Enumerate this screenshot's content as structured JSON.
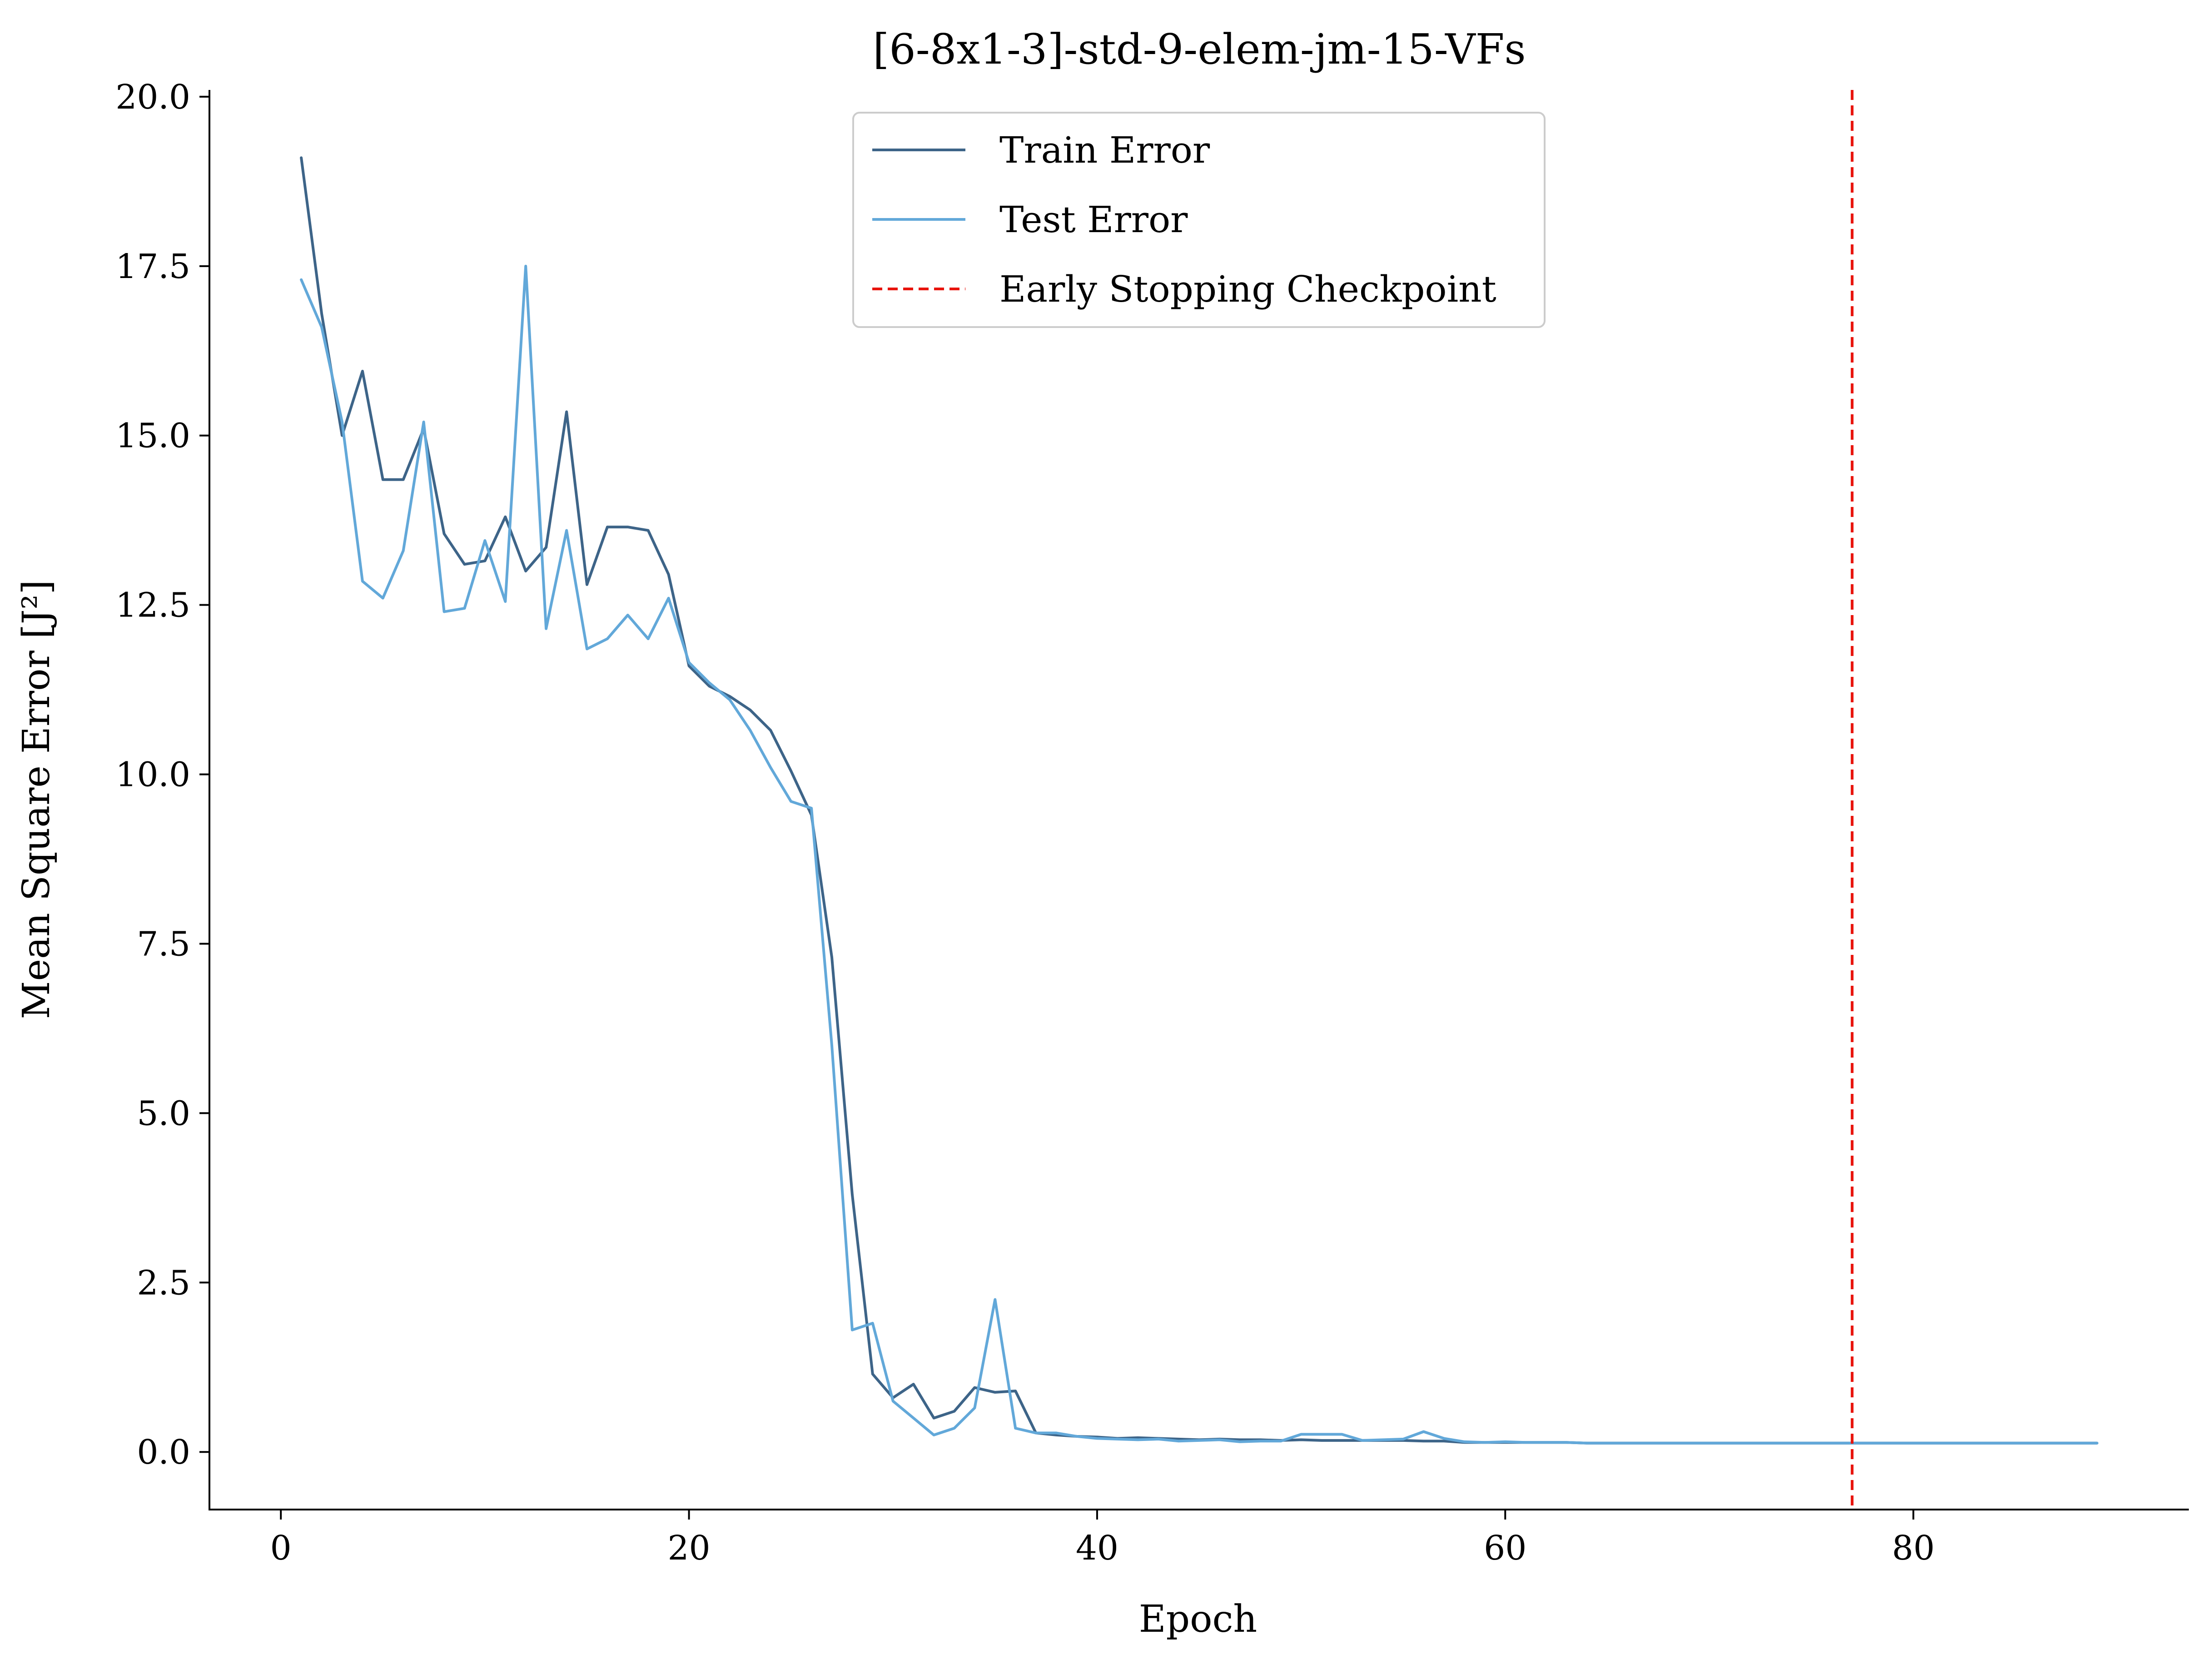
{
  "chart_data": {
    "type": "line",
    "title": "[6-8x1-3]-std-9-elem-jm-15-VFs",
    "xlabel": "Epoch",
    "ylabel": "Mean Square Error [J²]",
    "xlim": [
      -3.5,
      93.5
    ],
    "ylim": [
      -0.85,
      20.1
    ],
    "xticks": [
      0,
      20,
      40,
      60,
      80
    ],
    "xtick_labels": [
      "0",
      "20",
      "40",
      "60",
      "80"
    ],
    "yticks": [
      0.0,
      2.5,
      5.0,
      7.5,
      10.0,
      12.5,
      15.0,
      17.5,
      20.0
    ],
    "ytick_labels": [
      "0.0",
      "2.5",
      "5.0",
      "7.5",
      "10.0",
      "12.5",
      "15.0",
      "17.5",
      "20.0"
    ],
    "grid": false,
    "legend_position": "top-center",
    "series": [
      {
        "name": "Train Error",
        "color": "#3d6488",
        "style": "solid",
        "x": [
          1,
          2,
          3,
          4,
          5,
          6,
          7,
          8,
          9,
          10,
          11,
          12,
          13,
          14,
          15,
          16,
          17,
          18,
          19,
          20,
          21,
          22,
          23,
          24,
          25,
          26,
          27,
          28,
          29,
          30,
          31,
          32,
          33,
          34,
          35,
          36,
          37,
          38,
          39,
          40,
          41,
          42,
          43,
          44,
          45,
          46,
          47,
          48,
          49,
          50,
          51,
          52,
          53,
          54,
          55,
          56,
          57,
          58,
          59,
          60,
          61,
          62,
          63,
          64,
          65,
          66,
          67,
          68,
          69,
          70,
          71,
          72,
          73,
          74,
          75,
          76,
          77,
          78,
          79,
          80,
          81,
          82,
          83,
          84,
          85,
          86,
          87,
          88,
          89
        ],
        "y": [
          19.1,
          16.8,
          15.0,
          15.95,
          14.35,
          14.35,
          15.1,
          13.55,
          13.1,
          13.15,
          13.8,
          13.0,
          13.35,
          15.35,
          12.8,
          13.65,
          13.65,
          13.6,
          12.95,
          11.6,
          11.3,
          11.15,
          10.95,
          10.65,
          10.05,
          9.4,
          7.3,
          3.8,
          1.15,
          0.8,
          1.0,
          0.5,
          0.6,
          0.95,
          0.88,
          0.9,
          0.28,
          0.25,
          0.23,
          0.22,
          0.2,
          0.21,
          0.2,
          0.19,
          0.18,
          0.19,
          0.18,
          0.18,
          0.17,
          0.18,
          0.17,
          0.17,
          0.17,
          0.17,
          0.17,
          0.16,
          0.16,
          0.14,
          0.14,
          0.14,
          0.14,
          0.14,
          0.14,
          0.13,
          0.13,
          0.13,
          0.13,
          0.13,
          0.13,
          0.13,
          0.13,
          0.13,
          0.13,
          0.13,
          0.13,
          0.13,
          0.13,
          0.13,
          0.13,
          0.13,
          0.13,
          0.13,
          0.13,
          0.13,
          0.13,
          0.13,
          0.13,
          0.13,
          0.13
        ]
      },
      {
        "name": "Test Error",
        "color": "#62a8d9",
        "style": "solid",
        "x": [
          1,
          2,
          3,
          4,
          5,
          6,
          7,
          8,
          9,
          10,
          11,
          12,
          13,
          14,
          15,
          16,
          17,
          18,
          19,
          20,
          21,
          22,
          23,
          24,
          25,
          26,
          27,
          28,
          29,
          30,
          31,
          32,
          33,
          34,
          35,
          36,
          37,
          38,
          39,
          40,
          41,
          42,
          43,
          44,
          45,
          46,
          47,
          48,
          49,
          50,
          51,
          52,
          53,
          54,
          55,
          56,
          57,
          58,
          59,
          60,
          61,
          62,
          63,
          64,
          65,
          66,
          67,
          68,
          69,
          70,
          71,
          72,
          73,
          74,
          75,
          76,
          77,
          78,
          79,
          80,
          81,
          82,
          83,
          84,
          85,
          86,
          87,
          88,
          89
        ],
        "y": [
          17.3,
          16.6,
          15.2,
          12.85,
          12.6,
          13.3,
          15.2,
          12.4,
          12.45,
          13.45,
          12.55,
          17.5,
          12.15,
          13.6,
          11.85,
          12.0,
          12.35,
          12.0,
          12.6,
          11.65,
          11.35,
          11.1,
          10.65,
          10.1,
          9.6,
          9.5,
          6.0,
          1.8,
          1.9,
          0.75,
          0.5,
          0.25,
          0.35,
          0.65,
          2.25,
          0.35,
          0.28,
          0.28,
          0.23,
          0.2,
          0.19,
          0.18,
          0.19,
          0.16,
          0.17,
          0.18,
          0.15,
          0.16,
          0.16,
          0.26,
          0.26,
          0.26,
          0.17,
          0.18,
          0.19,
          0.3,
          0.2,
          0.15,
          0.14,
          0.15,
          0.14,
          0.14,
          0.14,
          0.13,
          0.13,
          0.13,
          0.13,
          0.13,
          0.13,
          0.13,
          0.13,
          0.13,
          0.13,
          0.13,
          0.13,
          0.13,
          0.13,
          0.13,
          0.13,
          0.13,
          0.13,
          0.13,
          0.13,
          0.13,
          0.13,
          0.13,
          0.13,
          0.13,
          0.13
        ]
      }
    ],
    "vlines": [
      {
        "name": "Early Stopping Checkpoint",
        "x": 77,
        "color": "#e8140c",
        "style": "dashed"
      }
    ]
  }
}
